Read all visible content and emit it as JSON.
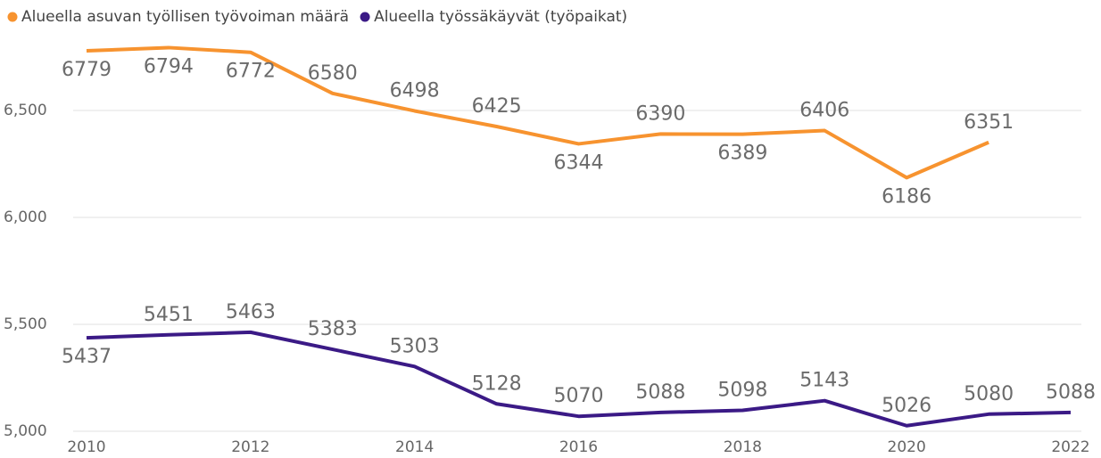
{
  "chart_data": {
    "type": "line",
    "x": [
      2010,
      2011,
      2012,
      2013,
      2014,
      2015,
      2016,
      2017,
      2018,
      2019,
      2020,
      2021,
      2022
    ],
    "series": [
      {
        "name": "Alueella asuvan työllisen työvoiman määrä",
        "color": "#f7932f",
        "values": [
          6779,
          6794,
          6772,
          6580,
          6498,
          6425,
          6344,
          6390,
          6389,
          6406,
          6186,
          6351,
          null
        ]
      },
      {
        "name": "Alueella työssäkäyvät (työpaikat)",
        "color": "#3b1a86",
        "values": [
          5437,
          5451,
          5463,
          5383,
          5303,
          5128,
          5070,
          5088,
          5098,
          5143,
          5026,
          5080,
          5088
        ]
      }
    ],
    "xlim": [
      2010,
      2022
    ],
    "xticks": [
      2010,
      2012,
      2014,
      2016,
      2018,
      2020,
      2022
    ],
    "ylim": [
      5000,
      6850
    ],
    "yticks": [
      {
        "value": 5000,
        "label": "5,000"
      },
      {
        "value": 5500,
        "label": "5,500"
      },
      {
        "value": 6000,
        "label": "6,000"
      },
      {
        "value": 6500,
        "label": "6,500"
      }
    ],
    "grid": true,
    "legend": "top-left"
  }
}
